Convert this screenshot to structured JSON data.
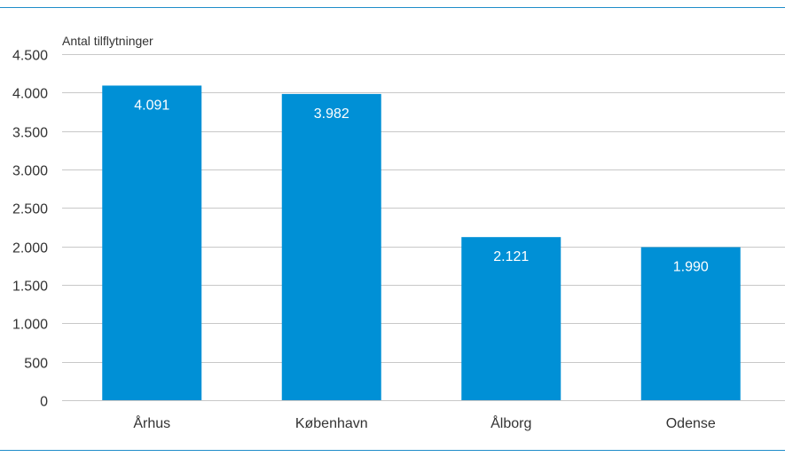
{
  "chart_data": {
    "type": "bar",
    "title": "",
    "xlabel": "",
    "ylabel": "Antal tilflytninger",
    "categories": [
      "Århus",
      "København",
      "Ålborg",
      "Odense"
    ],
    "values": [
      4091,
      3982,
      2121,
      1990
    ],
    "value_labels": [
      "4.091",
      "3.982",
      "2.121",
      "1.990"
    ],
    "ylim": [
      0,
      4500
    ],
    "yticks": [
      0,
      500,
      1000,
      1500,
      2000,
      2500,
      3000,
      3500,
      4000,
      4500
    ],
    "ytick_labels": [
      "0",
      "500",
      "1.000",
      "1.500",
      "2.000",
      "2.500",
      "3.000",
      "3.500",
      "4.000",
      "4.500"
    ],
    "grid": true,
    "legend": "none",
    "bar_color": "#0090d6",
    "grid_color": "#c8c8c8",
    "frame_color": "#1f8dc9",
    "text_color": "#333333",
    "label_color": "#ffffff"
  }
}
